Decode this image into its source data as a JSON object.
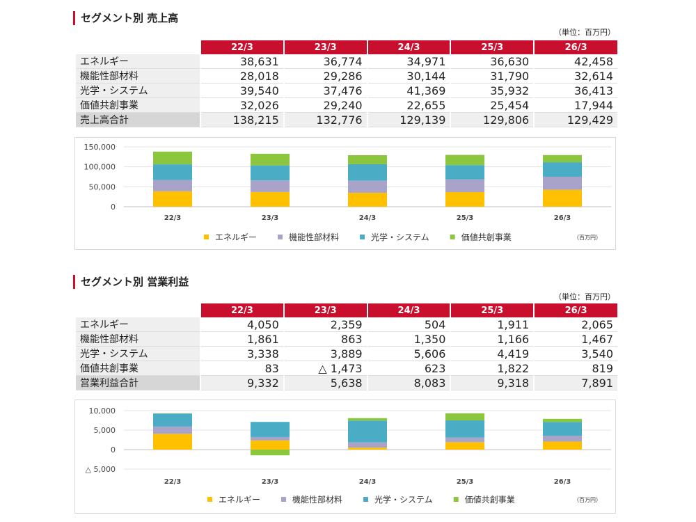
{
  "colors": {
    "accent": "#c8102e",
    "energy": "#ffc000",
    "materials": "#a9a2c9",
    "optics": "#4bacc6",
    "value": "#8cc63f"
  },
  "sales": {
    "title": "セグメント別 売上高",
    "unit": "（単位：百万円）",
    "headers": [
      "22/3",
      "23/3",
      "24/3",
      "25/3",
      "26/3"
    ],
    "rows": [
      {
        "label": "エネルギー",
        "values": [
          "38,631",
          "36,774",
          "34,971",
          "36,630",
          "42,458"
        ]
      },
      {
        "label": "機能性部材料",
        "values": [
          "28,018",
          "29,286",
          "30,144",
          "31,790",
          "32,614"
        ]
      },
      {
        "label": "光学・システム",
        "values": [
          "39,540",
          "37,476",
          "41,369",
          "35,932",
          "36,413"
        ]
      },
      {
        "label": "価値共創事業",
        "values": [
          "32,026",
          "29,240",
          "22,655",
          "25,454",
          "17,944"
        ]
      }
    ],
    "total": {
      "label": "売上高合計",
      "values": [
        "138,215",
        "132,776",
        "129,139",
        "129,806",
        "129,429"
      ]
    }
  },
  "profit": {
    "title": "セグメント別 営業利益",
    "unit": "（単位：百万円）",
    "headers": [
      "22/3",
      "23/3",
      "24/3",
      "25/3",
      "26/3"
    ],
    "rows": [
      {
        "label": "エネルギー",
        "values": [
          "4,050",
          "2,359",
          "504",
          "1,911",
          "2,065"
        ]
      },
      {
        "label": "機能性部材料",
        "values": [
          "1,861",
          "863",
          "1,350",
          "1,166",
          "1,467"
        ]
      },
      {
        "label": "光学・システム",
        "values": [
          "3,338",
          "3,889",
          "5,606",
          "4,419",
          "3,540"
        ]
      },
      {
        "label": "価値共創事業",
        "values": [
          "83",
          "△ 1,473",
          "623",
          "1,822",
          "819"
        ]
      }
    ],
    "total": {
      "label": "営業利益合計",
      "values": [
        "9,332",
        "5,638",
        "8,083",
        "9,318",
        "7,891"
      ]
    }
  },
  "chart_data": [
    {
      "type": "bar",
      "stacked": true,
      "categories": [
        "22/3",
        "23/3",
        "24/3",
        "25/3",
        "26/3"
      ],
      "series": [
        {
          "name": "エネルギー",
          "values": [
            38631,
            36774,
            34971,
            36630,
            42458
          ]
        },
        {
          "name": "機能性部材料",
          "values": [
            28018,
            29286,
            30144,
            31790,
            32614
          ]
        },
        {
          "name": "光学・システム",
          "values": [
            39540,
            37476,
            41369,
            35932,
            36413
          ]
        },
        {
          "name": "価値共創事業",
          "values": [
            32026,
            29240,
            22655,
            25454,
            17944
          ]
        }
      ],
      "ylim": [
        0,
        150000
      ],
      "yticks": [
        0,
        50000,
        100000,
        150000
      ],
      "ytick_labels": [
        "0",
        "50,000",
        "100,000",
        "150,000"
      ],
      "unit_label": "（百万円）",
      "grid": true,
      "legend": "bottom"
    },
    {
      "type": "bar",
      "stacked": true,
      "categories": [
        "22/3",
        "23/3",
        "24/3",
        "25/3",
        "26/3"
      ],
      "series": [
        {
          "name": "エネルギー",
          "values": [
            4050,
            2359,
            504,
            1911,
            2065
          ]
        },
        {
          "name": "機能性部材料",
          "values": [
            1861,
            863,
            1350,
            1166,
            1467
          ]
        },
        {
          "name": "光学・システム",
          "values": [
            3338,
            3889,
            5606,
            4419,
            3540
          ]
        },
        {
          "name": "価値共創事業",
          "values": [
            83,
            -1473,
            623,
            1822,
            819
          ]
        }
      ],
      "ylim": [
        -5000,
        10000
      ],
      "yticks": [
        -5000,
        0,
        5000,
        10000
      ],
      "ytick_labels": [
        "△ 5,000",
        "0",
        "5,000",
        "10,000"
      ],
      "unit_label": "（百万円）",
      "grid": true,
      "legend": "bottom"
    }
  ]
}
